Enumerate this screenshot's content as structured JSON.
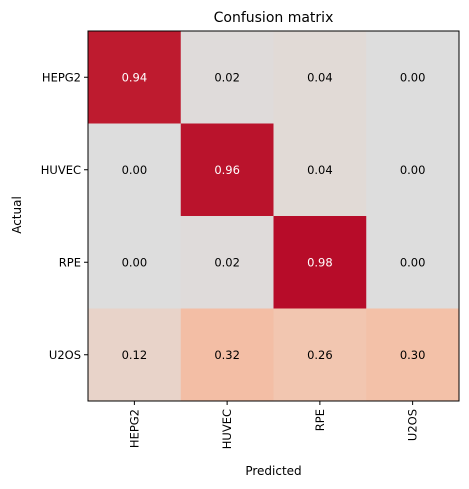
{
  "chart_data": {
    "type": "heatmap",
    "title": "Confusion matrix",
    "xlabel": "Predicted",
    "ylabel": "Actual",
    "row_labels": [
      "HEPG2",
      "HUVEC",
      "RPE",
      "U2OS"
    ],
    "col_labels": [
      "HEPG2",
      "HUVEC",
      "RPE",
      "U2OS"
    ],
    "values": [
      [
        0.94,
        0.02,
        0.04,
        0.0
      ],
      [
        0.0,
        0.96,
        0.04,
        0.0
      ],
      [
        0.0,
        0.02,
        0.98,
        0.0
      ],
      [
        0.12,
        0.32,
        0.26,
        0.3
      ]
    ],
    "value_format": "0.00",
    "colormap": "coolwarm",
    "vmin": -1,
    "vmax": 1,
    "grid": false,
    "colors": {
      "background": "#ffffff",
      "text_dark": "#000000",
      "text_light": "#ffffff",
      "axis": "#000000"
    }
  }
}
